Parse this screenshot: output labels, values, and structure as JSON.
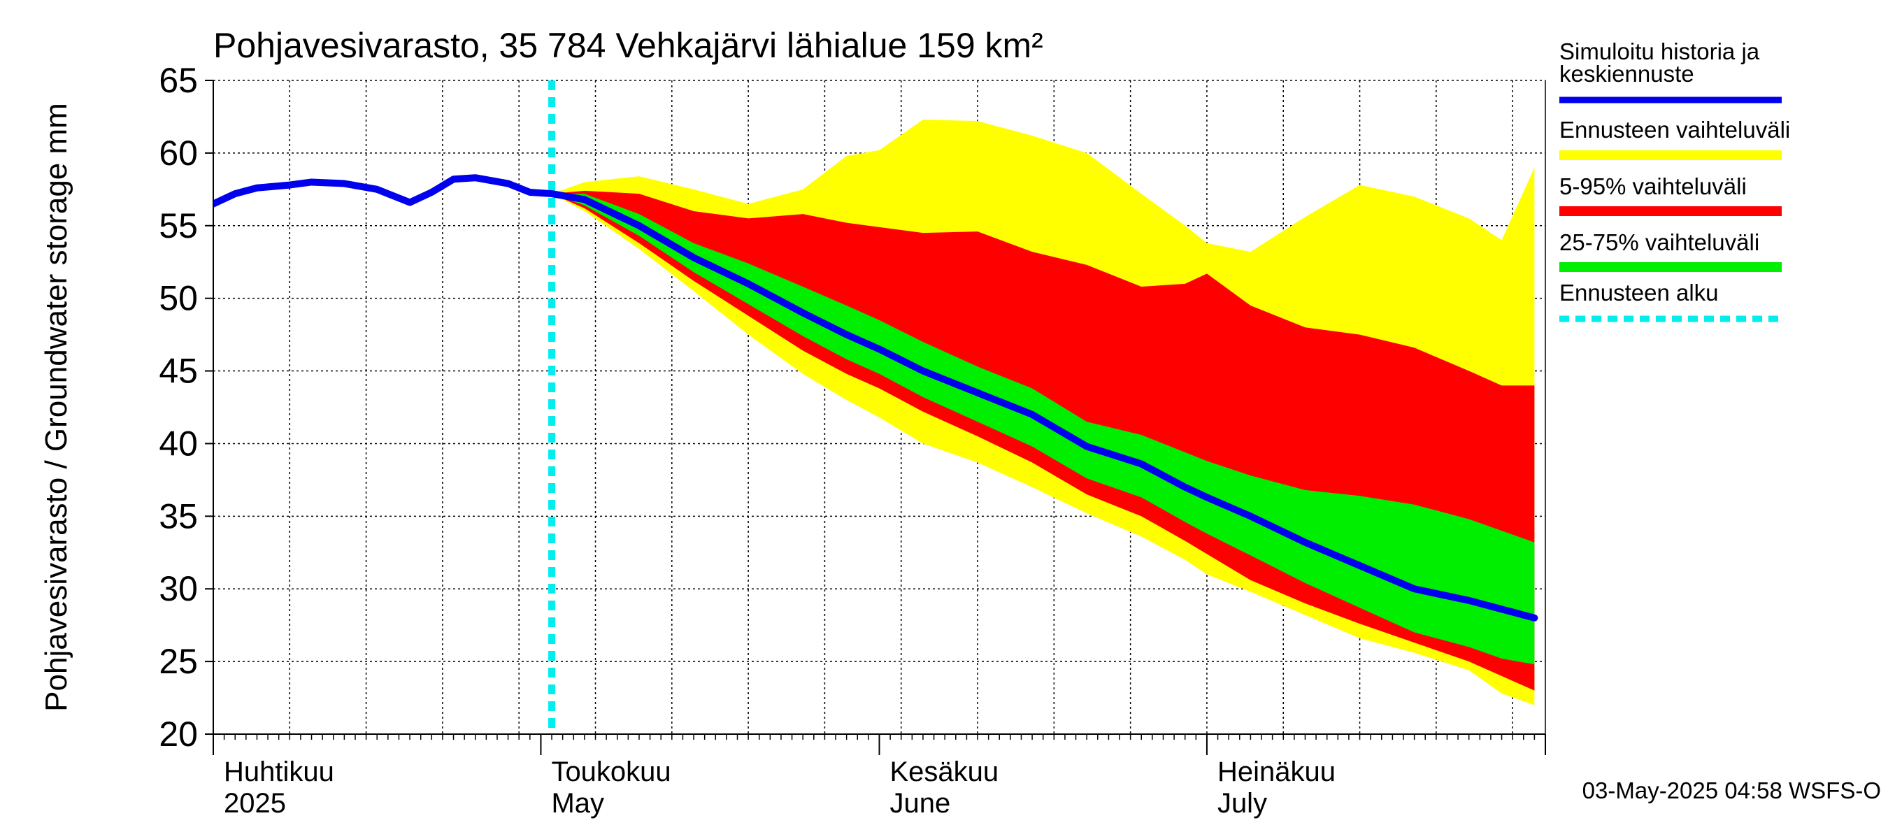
{
  "chart_data": {
    "type": "area",
    "title": "Pohjavesivarasto, 35 784 Vehkajärvi lähialue 159 km²",
    "ylabel": "Pohjavesivarasto / Groundwater storage   mm",
    "ylim": [
      20,
      65
    ],
    "yticks": [
      20,
      25,
      30,
      35,
      40,
      45,
      50,
      55,
      60,
      65
    ],
    "grid": true,
    "legend_position": "right",
    "footer": "03-May-2025 04:58 WSFS-O",
    "x_start": "2025-04-01",
    "x_end": "2025-07-31",
    "forecast_start": "2025-05-02",
    "month_labels": [
      {
        "fi": "Huhtikuu",
        "en": "2025",
        "date": "2025-04-01"
      },
      {
        "fi": "Toukokuu",
        "en": "May",
        "date": "2025-05-01"
      },
      {
        "fi": "Kesäkuu",
        "en": "June",
        "date": "2025-06-01"
      },
      {
        "fi": "Heinäkuu",
        "en": "July",
        "date": "2025-07-01"
      }
    ],
    "legend": [
      {
        "label": "Simuloitu historia ja keskiennuste",
        "color": "#0000ee",
        "style": "line"
      },
      {
        "label": "Ennusteen vaihteluväli",
        "color": "#ffff00",
        "style": "band"
      },
      {
        "label": "5-95% vaihteluväli",
        "color": "#ff0000",
        "style": "band"
      },
      {
        "label": "25-75% vaihteluväli",
        "color": "#00ee00",
        "style": "band"
      },
      {
        "label": "Ennusteen alku",
        "color": "#00eeee",
        "style": "dashed"
      }
    ],
    "history": {
      "x": [
        "2025-04-01",
        "2025-04-03",
        "2025-04-05",
        "2025-04-08",
        "2025-04-10",
        "2025-04-13",
        "2025-04-16",
        "2025-04-19",
        "2025-04-21",
        "2025-04-23",
        "2025-04-25",
        "2025-04-28",
        "2025-04-30",
        "2025-05-02"
      ],
      "y": [
        56.5,
        57.2,
        57.6,
        57.8,
        58.0,
        57.9,
        57.5,
        56.6,
        57.3,
        58.2,
        58.3,
        57.9,
        57.3,
        57.2
      ]
    },
    "forecast": {
      "x": [
        "2025-05-02",
        "2025-05-05",
        "2025-05-10",
        "2025-05-15",
        "2025-05-20",
        "2025-05-25",
        "2025-05-29",
        "2025-06-01",
        "2025-06-05",
        "2025-06-10",
        "2025-06-15",
        "2025-06-20",
        "2025-06-25",
        "2025-06-29",
        "2025-07-01",
        "2025-07-05",
        "2025-07-10",
        "2025-07-15",
        "2025-07-20",
        "2025-07-25",
        "2025-07-28",
        "2025-07-31"
      ],
      "median": [
        57.2,
        56.8,
        55.0,
        52.8,
        51.0,
        49.0,
        47.5,
        46.5,
        45.0,
        43.5,
        42.0,
        39.8,
        38.6,
        37.0,
        36.3,
        35.0,
        33.2,
        31.6,
        30.0,
        29.2,
        28.6,
        28.0
      ],
      "p25": [
        57.2,
        56.4,
        54.3,
        51.8,
        49.6,
        47.4,
        45.8,
        44.8,
        43.2,
        41.5,
        39.8,
        37.6,
        36.3,
        34.6,
        33.8,
        32.3,
        30.4,
        28.7,
        27.0,
        26.0,
        25.2,
        24.8
      ],
      "p75": [
        57.2,
        57.2,
        55.8,
        53.8,
        52.4,
        50.8,
        49.5,
        48.5,
        47.0,
        45.3,
        43.8,
        41.5,
        40.6,
        39.4,
        38.8,
        37.8,
        36.8,
        36.4,
        35.8,
        34.8,
        34.0,
        33.2
      ],
      "p05": [
        57.2,
        56.2,
        53.8,
        51.2,
        48.8,
        46.4,
        44.8,
        43.8,
        42.2,
        40.5,
        38.7,
        36.5,
        35.0,
        33.3,
        32.4,
        30.6,
        29.0,
        27.6,
        26.3,
        25.0,
        24.0,
        23.0
      ],
      "p95": [
        57.2,
        57.4,
        57.2,
        56.0,
        55.5,
        55.8,
        55.2,
        54.9,
        54.5,
        54.6,
        53.2,
        52.3,
        50.8,
        51.0,
        51.7,
        49.5,
        48.0,
        47.5,
        46.6,
        45.0,
        44.0,
        44.0
      ],
      "min": [
        57.2,
        56.0,
        53.4,
        50.5,
        47.5,
        44.8,
        43.0,
        41.8,
        40.0,
        38.7,
        37.0,
        35.2,
        33.6,
        32.0,
        31.0,
        29.8,
        28.2,
        26.6,
        25.6,
        24.4,
        22.8,
        22.0
      ],
      "max": [
        57.2,
        58.0,
        58.4,
        57.5,
        56.5,
        57.5,
        59.8,
        60.2,
        62.3,
        62.2,
        61.2,
        60.0,
        57.2,
        55.0,
        53.8,
        53.2,
        55.6,
        57.8,
        57.0,
        55.5,
        54.0,
        59.0
      ]
    }
  }
}
